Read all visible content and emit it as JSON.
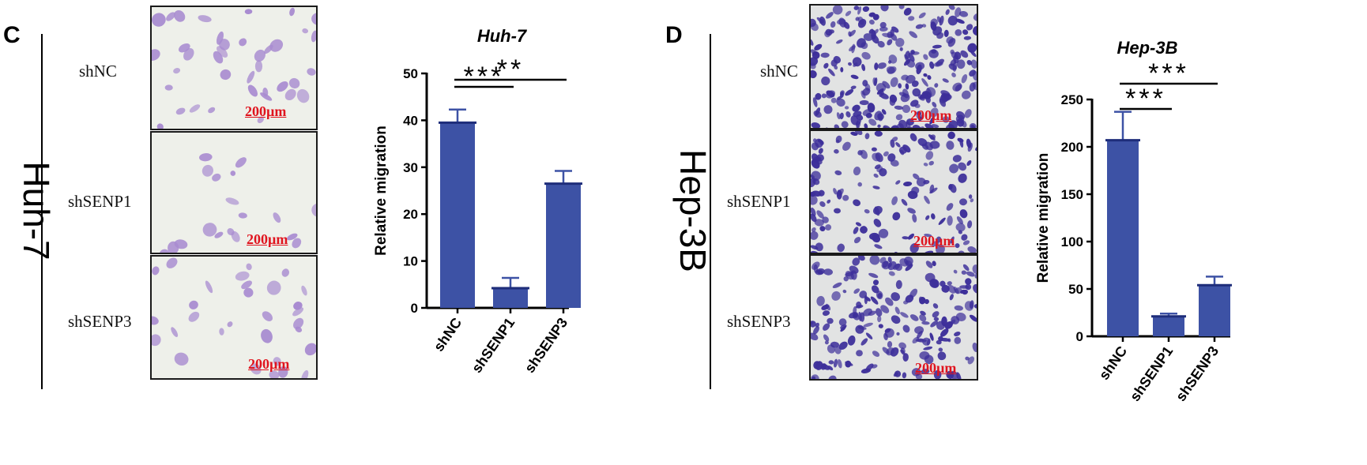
{
  "panels": [
    {
      "letter": "C",
      "cell_line": "Huh-7",
      "rows": [
        {
          "label": "shNC",
          "scale": "200µm"
        },
        {
          "label": "shSENP1",
          "scale": "200µm"
        },
        {
          "label": "shSENP3",
          "scale": "200µm"
        }
      ]
    },
    {
      "letter": "D",
      "cell_line": "Hep-3B",
      "rows": [
        {
          "label": "shNC",
          "scale": "200µm"
        },
        {
          "label": "shSENP1",
          "scale": "200µm"
        },
        {
          "label": "shSENP3",
          "scale": "200µm"
        }
      ]
    }
  ],
  "colors": {
    "bar": "#3d52a5",
    "stain_light": "#a88bd0",
    "stain_dark": "#3d2f9a",
    "field_light": "#eef0ea",
    "field_dark": "#e2e3e3",
    "scale": "#e0141e"
  },
  "chart_data": [
    {
      "type": "bar",
      "title": "Huh-7",
      "xlabel": "",
      "ylabel": "Relative migration",
      "categories": [
        "shNC",
        "shSENP1",
        "shSENP3"
      ],
      "values": [
        39.5,
        4.2,
        26.5
      ],
      "errors": [
        2.8,
        2.2,
        2.7
      ],
      "ylim": [
        0,
        50
      ],
      "yticks": [
        0,
        10,
        20,
        30,
        40,
        50
      ],
      "significance": [
        {
          "from": 0,
          "to": 1,
          "label": "***"
        },
        {
          "from": 0,
          "to": 2,
          "label": "**"
        }
      ]
    },
    {
      "type": "bar",
      "title": "Hep-3B",
      "xlabel": "",
      "ylabel": "Relative migration",
      "categories": [
        "shNC",
        "shSENP1",
        "shSENP3"
      ],
      "values": [
        207,
        21,
        54
      ],
      "errors": [
        30,
        3,
        9
      ],
      "ylim": [
        0,
        250
      ],
      "yticks": [
        0,
        50,
        100,
        150,
        200,
        250
      ],
      "significance": [
        {
          "from": 0,
          "to": 1,
          "label": "***"
        },
        {
          "from": 0,
          "to": 2,
          "label": "***"
        }
      ]
    }
  ]
}
